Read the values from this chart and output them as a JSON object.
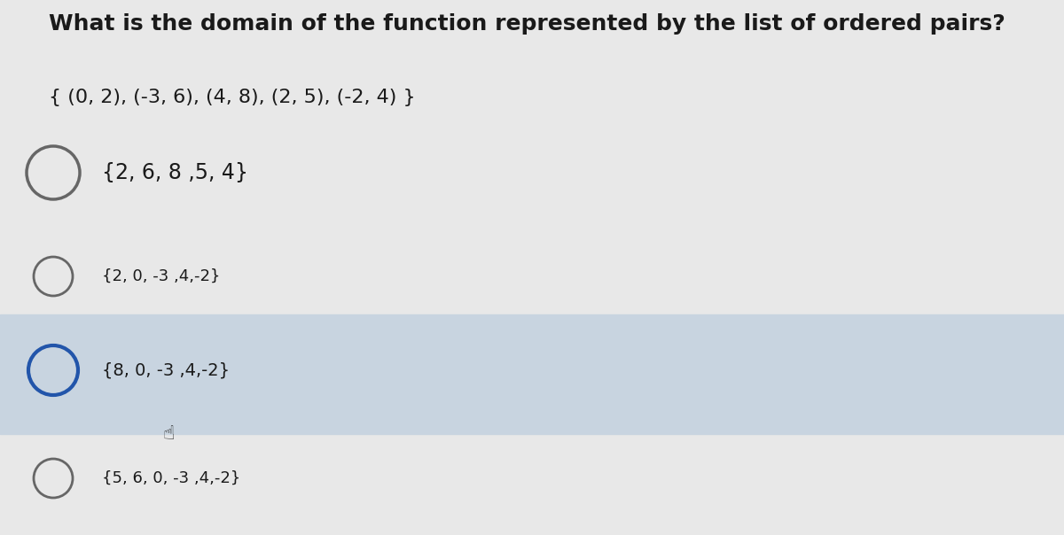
{
  "title": "What is the domain of the function represented by the list of ordered pairs?",
  "subtitle": "{ (0, 2), (-3, 6), (4, 8), (2, 5), (-2, 4) }",
  "options": [
    "{2, 6, 8 ,5, 4}",
    "{2, 0, -3 ,4,-2}",
    "{8, 0, -3 ,4,-2}",
    "{5, 6, 0, -3 ,4,-2}"
  ],
  "highlighted_option": 2,
  "bg_color": "#e8e8e8",
  "highlight_color": "#c8d4e0",
  "text_color": "#1a1a1a",
  "circle_color": "#666666",
  "highlight_circle_color": "#2255aa",
  "title_fontsize": 18,
  "subtitle_fontsize": 16,
  "option_fontsize_large": 17,
  "option_fontsize_small": 13
}
